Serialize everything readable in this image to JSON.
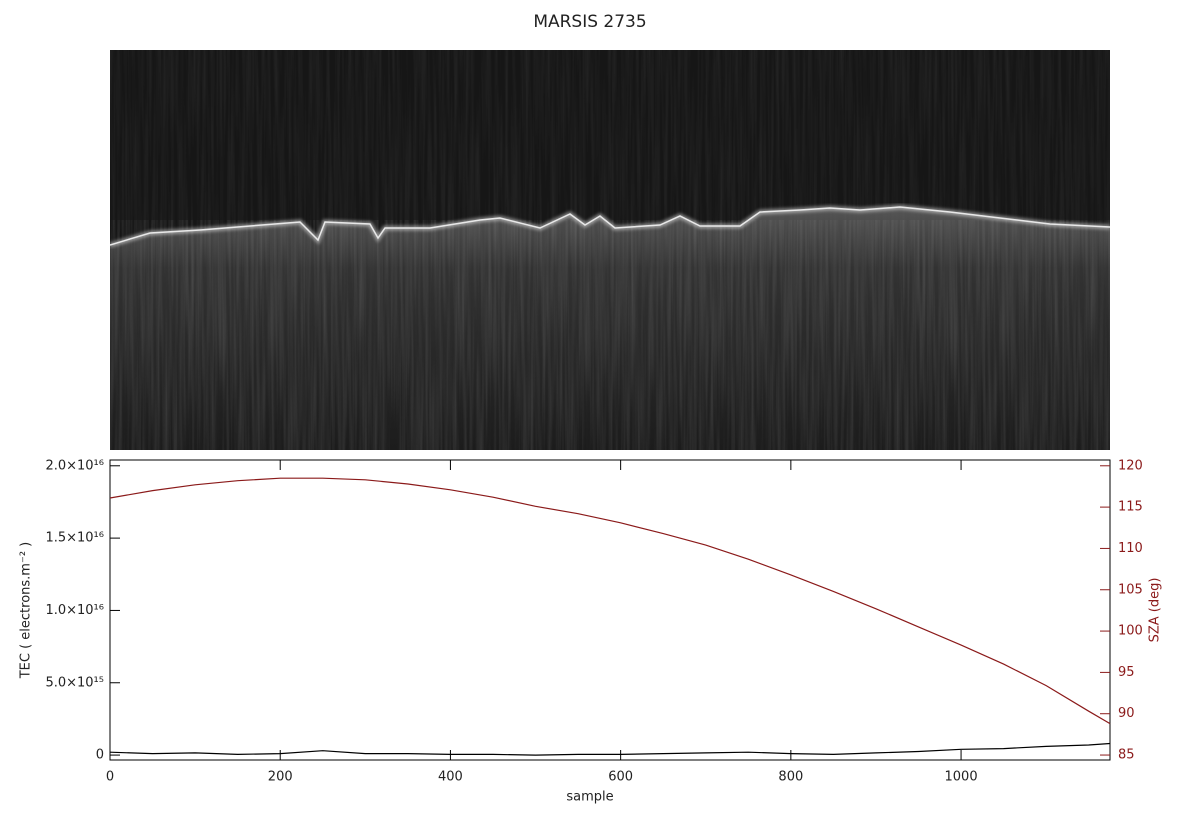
{
  "chart_data": {
    "type": "line",
    "title": "MARSIS 2735",
    "x_label": "sample",
    "y_label": "TEC ( electrons.m⁻² )",
    "y2_label": "SZA (deg)",
    "x": [
      0,
      50,
      100,
      150,
      200,
      250,
      300,
      350,
      400,
      450,
      500,
      550,
      600,
      650,
      700,
      750,
      800,
      850,
      900,
      950,
      1000,
      1050,
      1100,
      1150,
      1175
    ],
    "series": [
      {
        "color": "#000000",
        "values": [
          200000000000000.0,
          100000000000000.0,
          150000000000000.0,
          50000000000000.0,
          100000000000000.0,
          300000000000000.0,
          100000000000000.0,
          100000000000000.0,
          50000000000000.0,
          50000000000000.0,
          0,
          50000000000000.0,
          50000000000000.0,
          100000000000000.0,
          150000000000000.0,
          200000000000000.0,
          100000000000000.0,
          50000000000000.0,
          150000000000000.0,
          250000000000000.0,
          400000000000000.0,
          450000000000000.0,
          600000000000000.0,
          700000000000000.0,
          800000000000000.0
        ]
      },
      {
        "color": "#8b1a1a",
        "axis": "y2",
        "values": [
          116.1,
          117.0,
          117.7,
          118.2,
          118.5,
          118.5,
          118.3,
          117.8,
          117.1,
          116.2,
          115.1,
          114.2,
          113.1,
          111.8,
          110.4,
          108.7,
          106.8,
          104.8,
          102.7,
          100.5,
          98.3,
          96.0,
          93.4,
          90.3,
          88.8
        ]
      }
    ],
    "xlim": [
      0,
      1175
    ],
    "xticks": [
      0,
      200,
      400,
      600,
      800,
      1000
    ],
    "ylim": [
      -340000000000000.0,
      2.04e+16
    ],
    "yticks": [
      0,
      {
        "value": 5000000000000000.0,
        "label": "5.0×10¹⁵"
      },
      {
        "value": 1e+16,
        "label": "1.0×10¹⁶"
      },
      {
        "value": 1.5e+16,
        "label": "1.5×10¹⁶"
      },
      {
        "value": 2e+16,
        "label": "2.0×10¹⁶"
      }
    ],
    "y2lim": [
      84.4,
      120.7
    ],
    "y2ticks": [
      85,
      90,
      95,
      100,
      105,
      110,
      115,
      120
    ]
  }
}
